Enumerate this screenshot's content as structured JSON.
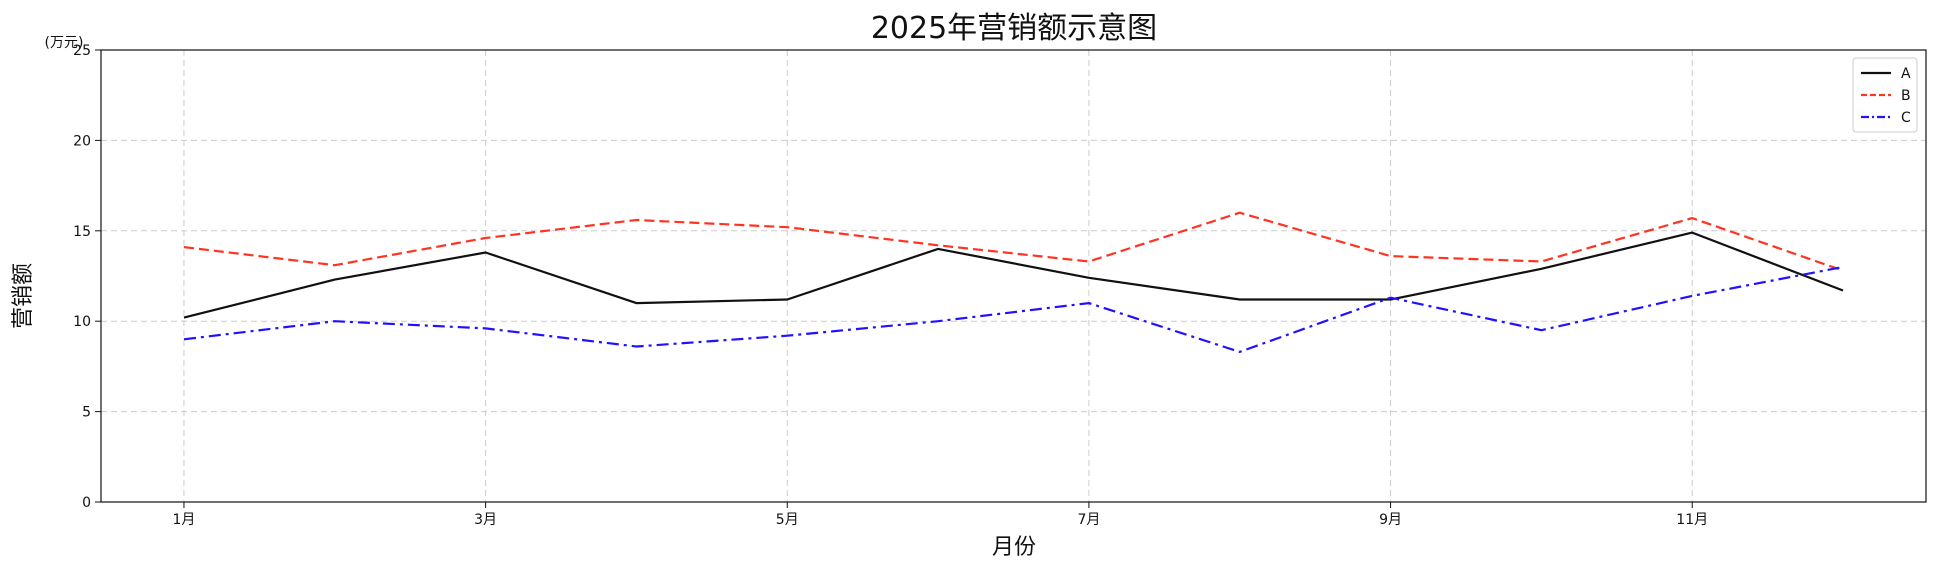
{
  "chart_data": {
    "type": "line",
    "title": "2025年营销额示意图",
    "xlabel": "月份",
    "ylabel": "营销额",
    "unit_label": "(万元)",
    "x": [
      1,
      2,
      3,
      4,
      5,
      6,
      7,
      8,
      9,
      10,
      11,
      12
    ],
    "x_ticks": [
      {
        "value": 1,
        "label": "1月"
      },
      {
        "value": 3,
        "label": "3月"
      },
      {
        "value": 5,
        "label": "5月"
      },
      {
        "value": 7,
        "label": "7月"
      },
      {
        "value": 9,
        "label": "9月"
      },
      {
        "value": 11,
        "label": "11月"
      }
    ],
    "y_ticks": [
      {
        "value": 0,
        "label": "0"
      },
      {
        "value": 5,
        "label": "5"
      },
      {
        "value": 10,
        "label": "10"
      },
      {
        "value": 15,
        "label": "15"
      },
      {
        "value": 20,
        "label": "20"
      },
      {
        "value": 25,
        "label": "25"
      }
    ],
    "xlim": [
      0.45,
      12.55
    ],
    "ylim": [
      0,
      25
    ],
    "grid": true,
    "legend_position": "top-right",
    "series": [
      {
        "name": "A",
        "color": "#111111",
        "style": "solid",
        "values": [
          10.2,
          12.3,
          13.8,
          11.0,
          11.2,
          14.0,
          12.4,
          11.2,
          11.2,
          12.9,
          14.9,
          11.7
        ]
      },
      {
        "name": "B",
        "color": "#ff3322",
        "style": "dashed",
        "values": [
          14.1,
          13.1,
          14.6,
          15.6,
          15.2,
          14.2,
          13.3,
          16.0,
          13.6,
          13.3,
          15.7,
          12.8
        ]
      },
      {
        "name": "C",
        "color": "#2211ff",
        "style": "dashdot",
        "values": [
          9.0,
          10.0,
          9.6,
          8.6,
          9.2,
          10.0,
          11.0,
          8.3,
          11.3,
          9.5,
          11.4,
          13.0
        ]
      }
    ]
  }
}
